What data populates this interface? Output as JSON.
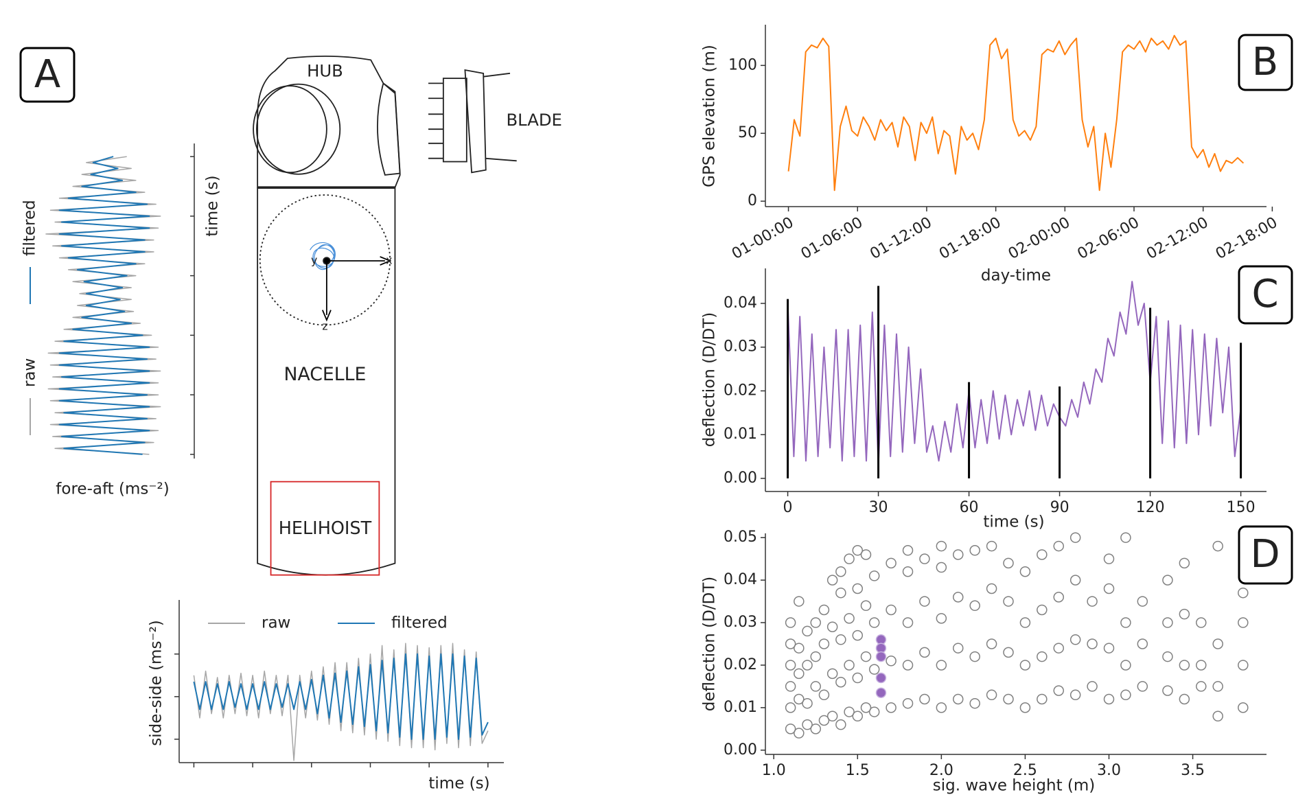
{
  "diagram": {
    "panel_labels": [
      "A",
      "B",
      "C",
      "D"
    ],
    "labels": {
      "hub": "HUB",
      "blade": "BLADE",
      "nacelle": "NACELLE",
      "helihoist": "HELIHOIST",
      "x": "x",
      "y": "y",
      "z": "z"
    }
  },
  "chart_data": [
    {
      "type": "line",
      "x": [
        0,
        0.1,
        0.2,
        0.3,
        0.4,
        0.5,
        0.6,
        0.7,
        0.8,
        0.9,
        1,
        1.1,
        1.2,
        1.3,
        1.4,
        1.5,
        1.6,
        1.7,
        1.8,
        1.9,
        2,
        2.1,
        2.2,
        2.3,
        2.4,
        2.5,
        2.6,
        2.7,
        2.8,
        2.9,
        3,
        3.1,
        3.2,
        3.3,
        3.4,
        3.5,
        3.6,
        3.7,
        3.8,
        3.9,
        4,
        4.1,
        4.2,
        4.3,
        4.4,
        4.5,
        4.6,
        4.7,
        4.8,
        4.9,
        5
      ],
      "xlim": [
        -0.25,
        5.27
      ],
      "xticks": [
        0,
        1,
        2,
        3,
        4,
        5
      ],
      "ylim": [
        -1.55,
        2.27
      ],
      "yticks": [
        -1,
        0,
        1
      ],
      "tick_labels": false,
      "x_label": "time (s)",
      "y_label": "side-side (ms⁻²)",
      "series": [
        {
          "name": "raw",
          "color": "#a6a6a6",
          "values": [
            0.5,
            -0.5,
            0.6,
            -0.4,
            0.45,
            -0.5,
            0.5,
            -0.4,
            0.55,
            -0.45,
            0.5,
            -0.5,
            0.6,
            -0.4,
            0.5,
            -0.45,
            0.5,
            -1.5,
            0.5,
            -0.5,
            0.6,
            -0.55,
            0.7,
            -0.65,
            0.8,
            -0.8,
            0.8,
            -0.85,
            0.9,
            -0.9,
            1.0,
            -1.0,
            1.2,
            -1.05,
            1.1,
            -1.15,
            1.25,
            -1.2,
            1.2,
            -1.2,
            1.15,
            -1.25,
            1.2,
            -1.1,
            1.25,
            -1.2,
            1.1,
            -1.15,
            1.05,
            -1.1,
            -0.8
          ]
        },
        {
          "name": "filtered",
          "color": "#1f77b4",
          "values": [
            0.35,
            -0.3,
            0.35,
            -0.3,
            0.3,
            -0.3,
            0.35,
            -0.25,
            0.3,
            -0.3,
            0.3,
            -0.3,
            0.35,
            -0.3,
            0.3,
            -0.25,
            0.3,
            -0.3,
            0.35,
            -0.3,
            0.4,
            -0.4,
            0.5,
            -0.5,
            0.55,
            -0.6,
            0.6,
            -0.65,
            0.7,
            -0.7,
            0.75,
            -0.8,
            0.85,
            -0.85,
            0.9,
            -0.95,
            1.0,
            -1.0,
            1.0,
            -1.0,
            0.95,
            -1.0,
            1.0,
            -0.95,
            1.0,
            -1.0,
            0.95,
            -0.95,
            0.9,
            -0.9,
            -0.6
          ]
        }
      ]
    },
    {
      "type": "line",
      "orientation": "vertical",
      "x": [
        0,
        0.1,
        0.2,
        0.3,
        0.4,
        0.5,
        0.6,
        0.7,
        0.8,
        0.9,
        1,
        1.1,
        1.2,
        1.3,
        1.4,
        1.5,
        1.6,
        1.7,
        1.8,
        1.9,
        2,
        2.1,
        2.2,
        2.3,
        2.4,
        2.5,
        2.6,
        2.7,
        2.8,
        2.9,
        3,
        3.1,
        3.2,
        3.3,
        3.4,
        3.5,
        3.6,
        3.7,
        3.8,
        3.9,
        4,
        4.1,
        4.2,
        4.3,
        4.4,
        4.5,
        4.6,
        4.7,
        4.8,
        4.9,
        5
      ],
      "xlim": [
        -0.22,
        5.07
      ],
      "xticks": [
        0,
        1,
        2,
        3,
        4,
        5
      ],
      "ylim": [
        -1.3,
        1.3
      ],
      "tick_labels": false,
      "x_label": "time (s)",
      "y_label": "fore-aft (ms⁻²)",
      "series": [
        {
          "name": "raw",
          "color": "#a6a6a6",
          "values": [
            0.5,
            -0.4,
            0.6,
            -0.5,
            0.7,
            -0.7,
            0.9,
            -1.0,
            1.15,
            -1.2,
            1.25,
            -1.1,
            1.2,
            -1.3,
            1.1,
            -1.15,
            1.1,
            -1.0,
            0.9,
            -0.8,
            0.7,
            -0.7,
            0.6,
            -0.55,
            0.6,
            -0.6,
            0.65,
            -0.7,
            0.8,
            -0.9,
            1.05,
            -1.1,
            1.2,
            -1.25,
            1.15,
            -1.2,
            1.25,
            -1.15,
            1.2,
            -1.25,
            1.2,
            -1.2,
            1.25,
            -1.1,
            1.15,
            -1.2,
            1.2,
            -1.15,
            1.1,
            -1.1,
            1.0
          ]
        },
        {
          "name": "filtered",
          "color": "#1f77b4",
          "values": [
            0.2,
            -0.25,
            0.3,
            -0.3,
            0.4,
            -0.5,
            0.7,
            -0.8,
            0.95,
            -1.0,
            1.0,
            -0.95,
            1.0,
            -1.0,
            0.9,
            -0.95,
            0.9,
            -0.8,
            0.7,
            -0.6,
            0.5,
            -0.45,
            0.4,
            -0.4,
            0.35,
            -0.4,
            0.45,
            -0.5,
            0.6,
            -0.7,
            0.85,
            -0.9,
            1.0,
            -1.0,
            0.95,
            -1.0,
            1.0,
            -0.95,
            1.0,
            -1.0,
            0.95,
            -1.0,
            1.0,
            -0.9,
            0.95,
            -1.0,
            1.0,
            -0.95,
            0.9,
            -0.9,
            0.85
          ]
        }
      ]
    },
    {
      "type": "line",
      "color": "#ff7f0e",
      "x": [
        0,
        0.5,
        1,
        1.5,
        2,
        2.5,
        3,
        3.5,
        4,
        4.5,
        5,
        5.5,
        6,
        6.5,
        7,
        7.5,
        8,
        8.5,
        9,
        9.5,
        10,
        10.5,
        11,
        11.5,
        12,
        12.5,
        13,
        13.5,
        14,
        14.5,
        15,
        15.5,
        16,
        16.5,
        17,
        17.5,
        18,
        18.5,
        19,
        19.5,
        20,
        20.5,
        21,
        21.5,
        22,
        22.5,
        23,
        23.5,
        24,
        24.5,
        25,
        25.5,
        26,
        26.5,
        27,
        27.5,
        28,
        28.5,
        29,
        29.5,
        30,
        30.5,
        31,
        31.5,
        32,
        32.5,
        33,
        33.5,
        34,
        34.5,
        35,
        35.5,
        36,
        36.5,
        37,
        37.5,
        38,
        38.5,
        39,
        39.5
      ],
      "values": [
        22,
        60,
        48,
        110,
        115,
        113,
        120,
        114,
        8,
        55,
        70,
        52,
        48,
        62,
        55,
        45,
        60,
        52,
        58,
        40,
        62,
        55,
        30,
        58,
        50,
        62,
        35,
        52,
        48,
        20,
        55,
        45,
        50,
        38,
        60,
        115,
        120,
        105,
        112,
        60,
        48,
        52,
        45,
        55,
        108,
        112,
        110,
        118,
        108,
        115,
        120,
        60,
        40,
        55,
        8,
        50,
        25,
        60,
        110,
        115,
        112,
        118,
        110,
        120,
        115,
        118,
        112,
        122,
        115,
        118,
        40,
        32,
        38,
        25,
        35,
        22,
        30,
        28,
        32,
        28
      ],
      "xlim": [
        -2,
        41.5
      ],
      "xticks": [
        {
          "value": 0,
          "label": "01-00:00"
        },
        {
          "value": 6,
          "label": "01-06:00"
        },
        {
          "value": 12,
          "label": "01-12:00"
        },
        {
          "value": 18,
          "label": "01-18:00"
        },
        {
          "value": 24,
          "label": "02-00:00"
        },
        {
          "value": 30,
          "label": "02-06:00"
        },
        {
          "value": 36,
          "label": "02-12:00"
        },
        {
          "value": 42,
          "label": "02-18:00"
        }
      ],
      "xtick_rotation": 30,
      "ylim": [
        -4,
        130
      ],
      "yticks": [
        0,
        50,
        100
      ],
      "x_label": "day-time",
      "y_label": "GPS elevation (m)"
    },
    {
      "type": "line",
      "color": "#9467bd",
      "x": [
        0,
        2,
        4,
        6,
        8,
        10,
        12,
        14,
        16,
        18,
        20,
        22,
        24,
        26,
        28,
        30,
        32,
        34,
        36,
        38,
        40,
        42,
        44,
        46,
        48,
        50,
        52,
        54,
        56,
        58,
        60,
        62,
        64,
        66,
        68,
        70,
        72,
        74,
        76,
        78,
        80,
        82,
        84,
        86,
        88,
        90,
        92,
        94,
        96,
        98,
        100,
        102,
        104,
        106,
        108,
        110,
        112,
        114,
        116,
        118,
        120,
        122,
        124,
        126,
        128,
        130,
        132,
        134,
        136,
        138,
        140,
        142,
        144,
        146,
        148,
        150
      ],
      "values": [
        0.04,
        0.005,
        0.037,
        0.004,
        0.033,
        0.005,
        0.03,
        0.007,
        0.034,
        0.004,
        0.034,
        0.005,
        0.035,
        0.004,
        0.038,
        0.003,
        0.035,
        0.005,
        0.033,
        0.006,
        0.03,
        0.008,
        0.025,
        0.006,
        0.012,
        0.004,
        0.013,
        0.006,
        0.017,
        0.007,
        0.02,
        0.007,
        0.018,
        0.008,
        0.02,
        0.009,
        0.019,
        0.01,
        0.018,
        0.012,
        0.02,
        0.011,
        0.019,
        0.012,
        0.017,
        0.014,
        0.012,
        0.018,
        0.014,
        0.022,
        0.017,
        0.025,
        0.022,
        0.032,
        0.028,
        0.038,
        0.033,
        0.045,
        0.035,
        0.04,
        0.022,
        0.037,
        0.008,
        0.036,
        0.007,
        0.035,
        0.008,
        0.034,
        0.01,
        0.033,
        0.012,
        0.032,
        0.015,
        0.03,
        0.005,
        0.016
      ],
      "vlines": {
        "color": "#000000",
        "x": [
          0,
          30,
          60,
          90,
          120,
          150
        ],
        "values": [
          0.041,
          0.044,
          0.022,
          0.021,
          0.039,
          0.031
        ]
      },
      "xlim": [
        -7.4,
        158.5
      ],
      "xticks": [
        0,
        30,
        60,
        90,
        120,
        150
      ],
      "ylim": [
        -0.003,
        0.048
      ],
      "yticks": [
        {
          "value": 0,
          "label": "0.00"
        },
        {
          "value": 0.01,
          "label": "0.01"
        },
        {
          "value": 0.02,
          "label": "0.02"
        },
        {
          "value": 0.03,
          "label": "0.03"
        },
        {
          "value": 0.04,
          "label": "0.04"
        }
      ],
      "x_label": "time (s)",
      "y_label": "deflection (D/DT)"
    },
    {
      "type": "scatter",
      "series": [
        {
          "color": "#808080",
          "marker": "hollow",
          "x": [
            1.1,
            1.1,
            1.1,
            1.1,
            1.1,
            1.1,
            1.15,
            1.15,
            1.15,
            1.15,
            1.15,
            1.2,
            1.2,
            1.2,
            1.2,
            1.25,
            1.25,
            1.25,
            1.25,
            1.3,
            1.3,
            1.3,
            1.3,
            1.35,
            1.35,
            1.35,
            1.35,
            1.4,
            1.4,
            1.4,
            1.4,
            1.4,
            1.45,
            1.45,
            1.45,
            1.45,
            1.5,
            1.5,
            1.5,
            1.5,
            1.5,
            1.55,
            1.55,
            1.55,
            1.55,
            1.6,
            1.6,
            1.6,
            1.6,
            1.7,
            1.7,
            1.7,
            1.7,
            1.8,
            1.8,
            1.8,
            1.8,
            1.8,
            1.9,
            1.9,
            1.9,
            1.9,
            2.0,
            2.0,
            2.0,
            2.0,
            2.0,
            2.1,
            2.1,
            2.1,
            2.1,
            2.2,
            2.2,
            2.2,
            2.2,
            2.3,
            2.3,
            2.3,
            2.3,
            2.4,
            2.4,
            2.4,
            2.4,
            2.5,
            2.5,
            2.5,
            2.5,
            2.6,
            2.6,
            2.6,
            2.6,
            2.7,
            2.7,
            2.7,
            2.7,
            2.8,
            2.8,
            2.8,
            2.8,
            2.9,
            2.9,
            2.9,
            3.0,
            3.0,
            3.0,
            3.0,
            3.1,
            3.1,
            3.1,
            3.1,
            3.2,
            3.2,
            3.2,
            3.35,
            3.35,
            3.35,
            3.35,
            3.45,
            3.45,
            3.45,
            3.45,
            3.55,
            3.55,
            3.55,
            3.65,
            3.65,
            3.65,
            3.65,
            3.8,
            3.8,
            3.8,
            3.8
          ],
          "values": [
            0.005,
            0.01,
            0.015,
            0.02,
            0.025,
            0.03,
            0.004,
            0.012,
            0.018,
            0.024,
            0.035,
            0.006,
            0.011,
            0.02,
            0.028,
            0.005,
            0.015,
            0.022,
            0.03,
            0.007,
            0.013,
            0.025,
            0.033,
            0.008,
            0.018,
            0.029,
            0.04,
            0.006,
            0.016,
            0.026,
            0.037,
            0.042,
            0.009,
            0.02,
            0.031,
            0.045,
            0.008,
            0.017,
            0.027,
            0.038,
            0.047,
            0.01,
            0.022,
            0.034,
            0.046,
            0.009,
            0.019,
            0.03,
            0.041,
            0.01,
            0.021,
            0.033,
            0.044,
            0.011,
            0.02,
            0.03,
            0.042,
            0.047,
            0.012,
            0.023,
            0.035,
            0.045,
            0.01,
            0.02,
            0.031,
            0.043,
            0.048,
            0.012,
            0.024,
            0.036,
            0.046,
            0.011,
            0.022,
            0.034,
            0.047,
            0.013,
            0.025,
            0.038,
            0.048,
            0.012,
            0.023,
            0.035,
            0.044,
            0.01,
            0.02,
            0.03,
            0.042,
            0.012,
            0.022,
            0.033,
            0.046,
            0.014,
            0.024,
            0.036,
            0.048,
            0.013,
            0.026,
            0.04,
            0.05,
            0.015,
            0.025,
            0.035,
            0.012,
            0.024,
            0.038,
            0.045,
            0.013,
            0.02,
            0.03,
            0.05,
            0.015,
            0.025,
            0.035,
            0.014,
            0.022,
            0.03,
            0.04,
            0.012,
            0.02,
            0.032,
            0.044,
            0.015,
            0.02,
            0.03,
            0.008,
            0.015,
            0.025,
            0.048,
            0.01,
            0.02,
            0.03,
            0.037
          ]
        },
        {
          "color": "#9467bd",
          "marker": "filled",
          "x": [
            1.64,
            1.64,
            1.64,
            1.64,
            1.64
          ],
          "values": [
            0.026,
            0.024,
            0.022,
            0.017,
            0.0135
          ]
        }
      ],
      "xlim": [
        0.95,
        3.94
      ],
      "xticks": [
        {
          "value": 1,
          "label": "1.0"
        },
        1.5,
        {
          "value": 2,
          "label": "2.0"
        },
        2.5,
        {
          "value": 3,
          "label": "3.0"
        },
        3.5
      ],
      "ylim": [
        -0.001,
        0.051
      ],
      "yticks": [
        {
          "value": 0,
          "label": "0.00"
        },
        {
          "value": 0.01,
          "label": "0.01"
        },
        {
          "value": 0.02,
          "label": "0.02"
        },
        {
          "value": 0.03,
          "label": "0.03"
        },
        {
          "value": 0.04,
          "label": "0.04"
        },
        {
          "value": 0.05,
          "label": "0.05"
        }
      ],
      "x_label": "sig. wave height (m)",
      "y_label": "deflection (D/DT)"
    }
  ]
}
